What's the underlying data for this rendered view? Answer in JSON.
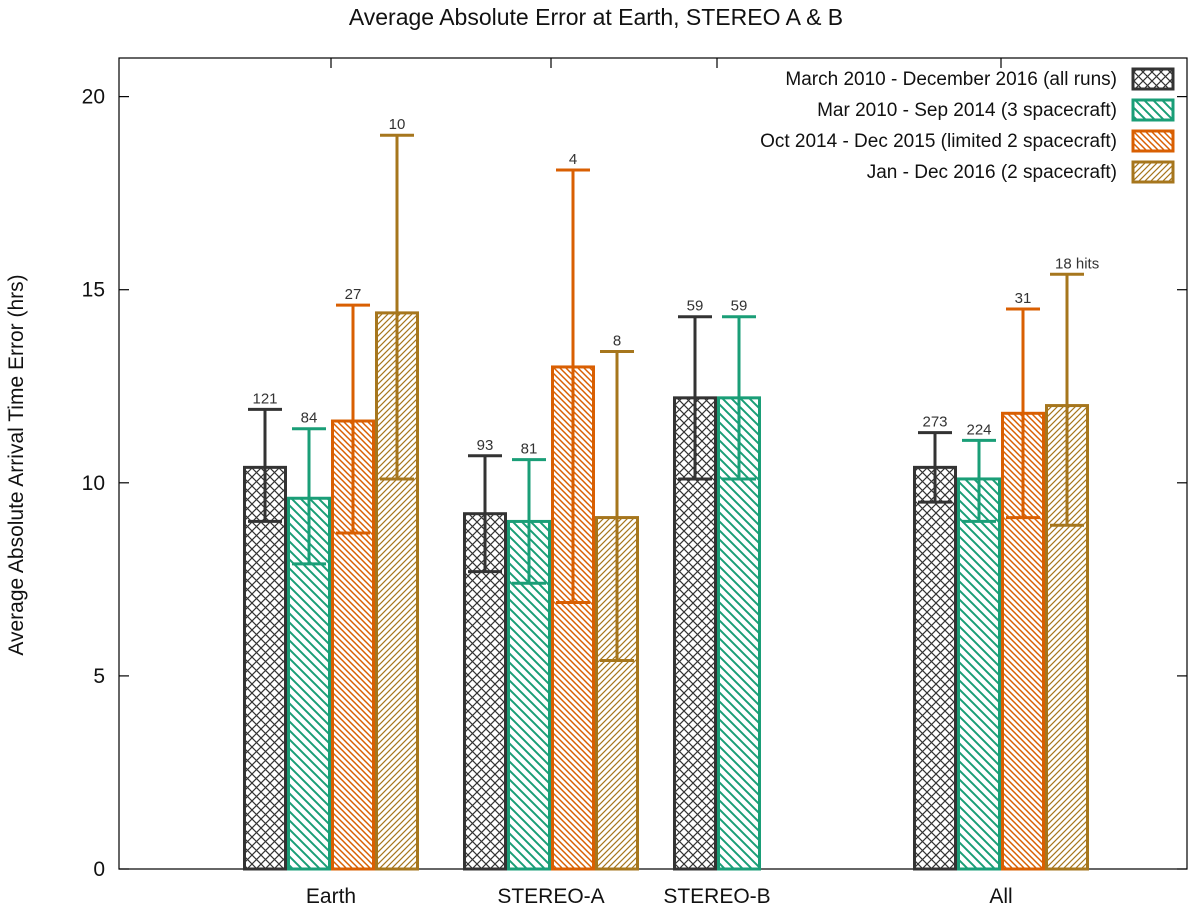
{
  "chart_data": {
    "type": "bar",
    "title": "Average Absolute Error at Earth, STEREO A & B",
    "xlabel": "",
    "ylabel": "Average Absolute Arrival Time Error (hrs)",
    "ylim": [
      0,
      21
    ],
    "yticks": [
      0,
      5,
      10,
      15,
      20
    ],
    "grid": false,
    "legend_position": "top-right",
    "categories": [
      "Earth",
      "STEREO-A",
      "STEREO-B",
      "All"
    ],
    "series": [
      {
        "name": "March 2010 - December 2016 (all runs)",
        "color": "#333333",
        "pattern": "crosshatch",
        "values": [
          10.4,
          9.2,
          12.2,
          10.4
        ],
        "err_low": [
          9.0,
          7.7,
          10.1,
          9.5
        ],
        "err_high": [
          11.9,
          10.7,
          14.3,
          11.3
        ],
        "counts": [
          "121",
          "93",
          "59",
          "273"
        ]
      },
      {
        "name": "Mar 2010 - Sep 2014 (3 spacecraft)",
        "color": "#1a9e77",
        "pattern": "diag-down",
        "values": [
          9.6,
          9.0,
          12.2,
          10.1
        ],
        "err_low": [
          7.9,
          7.4,
          10.1,
          9.0
        ],
        "err_high": [
          11.4,
          10.6,
          14.3,
          11.1
        ],
        "counts": [
          "84",
          "81",
          "59",
          "224"
        ]
      },
      {
        "name": "Oct 2014 - Dec 2015 (limited 2 spacecraft)",
        "color": "#d95f02",
        "pattern": "diag-down-dense",
        "values": [
          11.6,
          13.0,
          null,
          11.8
        ],
        "err_low": [
          8.7,
          6.9,
          null,
          9.1
        ],
        "err_high": [
          14.6,
          18.1,
          null,
          14.5
        ],
        "counts": [
          "27",
          "4",
          "",
          "31"
        ]
      },
      {
        "name": "Jan - Dec 2016 (2 spacecraft)",
        "color": "#a6761d",
        "pattern": "diag-up-dense",
        "values": [
          14.4,
          9.1,
          null,
          12.0
        ],
        "err_low": [
          10.1,
          5.4,
          null,
          8.9
        ],
        "err_high": [
          19.0,
          13.4,
          null,
          15.4
        ],
        "counts": [
          "10",
          "8",
          "",
          "18 hits"
        ]
      }
    ]
  }
}
